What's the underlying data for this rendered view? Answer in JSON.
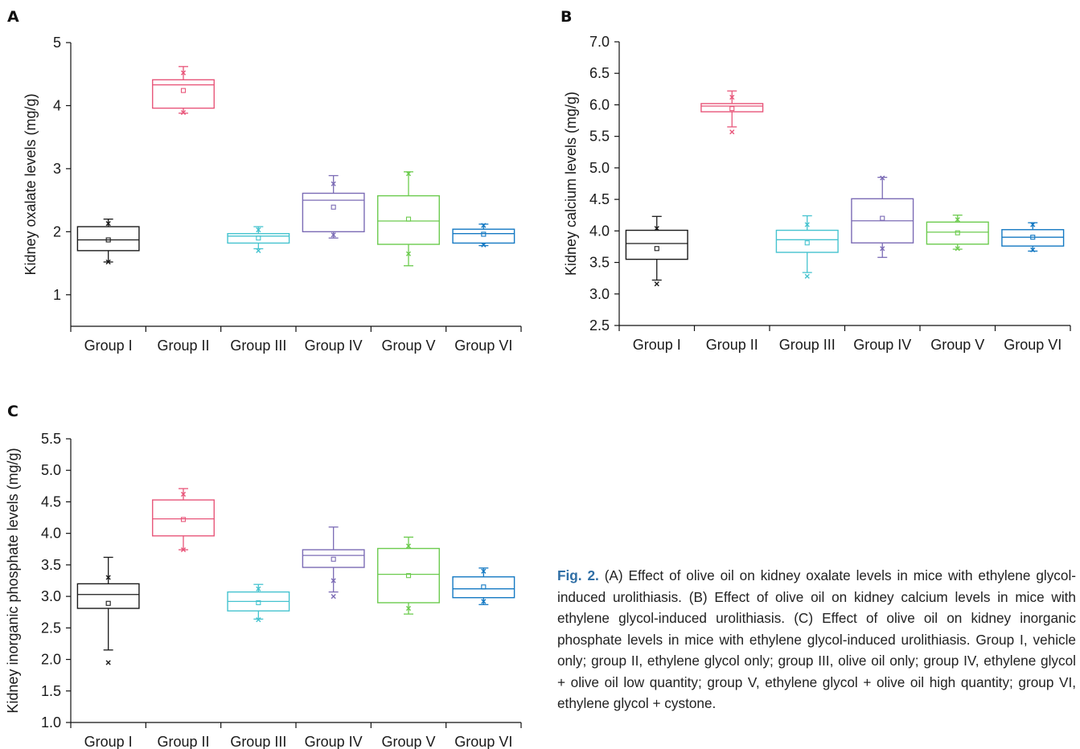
{
  "chart_data": [
    {
      "panel": "A",
      "type": "box",
      "ylabel": "Kidney oxalate levels (mg/g)",
      "ylim": [
        0.5,
        5
      ],
      "yticks": [
        "1",
        "2",
        "3",
        "4",
        "5"
      ],
      "ytick_values": [
        1,
        2,
        3,
        4,
        5
      ],
      "categories": [
        "Group I",
        "Group II",
        "Group III",
        "Group IV",
        "Group V",
        "Group VI"
      ],
      "colors": [
        "#1a1a1a",
        "#e8567a",
        "#45c3cf",
        "#7b6bb5",
        "#6ccb4e",
        "#1479c3"
      ],
      "boxes": [
        {
          "whisker_low": 1.52,
          "q1": 1.7,
          "median": 1.87,
          "q3": 2.08,
          "whisker_high": 2.2,
          "mean": 1.87,
          "min": 1.52,
          "max": 2.13
        },
        {
          "whisker_low": 3.88,
          "q1": 3.96,
          "median": 4.33,
          "q3": 4.41,
          "whisker_high": 4.62,
          "mean": 4.24,
          "min": 3.89,
          "max": 4.52
        },
        {
          "whisker_low": 1.73,
          "q1": 1.82,
          "median": 1.93,
          "q3": 1.97,
          "whisker_high": 2.08,
          "mean": 1.9,
          "min": 1.7,
          "max": 2.03
        },
        {
          "whisker_low": 1.9,
          "q1": 2.0,
          "median": 2.5,
          "q3": 2.61,
          "whisker_high": 2.89,
          "mean": 2.39,
          "min": 1.95,
          "max": 2.76
        },
        {
          "whisker_low": 1.46,
          "q1": 1.8,
          "median": 2.17,
          "q3": 2.57,
          "whisker_high": 2.95,
          "mean": 2.2,
          "min": 1.65,
          "max": 2.92
        },
        {
          "whisker_low": 1.78,
          "q1": 1.82,
          "median": 1.97,
          "q3": 2.04,
          "whisker_high": 2.12,
          "mean": 1.96,
          "min": 1.79,
          "max": 2.1
        }
      ]
    },
    {
      "panel": "B",
      "type": "box",
      "ylabel": "Kidney calcium levels (mg/g)",
      "ylim": [
        2.5,
        7.0
      ],
      "yticks": [
        "2.5",
        "3.0",
        "3.5",
        "4.0",
        "4.5",
        "5.0",
        "5.5",
        "6.0",
        "6.5",
        "7.0"
      ],
      "ytick_values": [
        2.5,
        3.0,
        3.5,
        4.0,
        4.5,
        5.0,
        5.5,
        6.0,
        6.5,
        7.0
      ],
      "categories": [
        "Group I",
        "Group II",
        "Group III",
        "Group IV",
        "Group V",
        "Group VI"
      ],
      "colors": [
        "#1a1a1a",
        "#e8567a",
        "#45c3cf",
        "#7b6bb5",
        "#6ccb4e",
        "#1479c3"
      ],
      "boxes": [
        {
          "whisker_low": 3.22,
          "q1": 3.55,
          "median": 3.8,
          "q3": 4.01,
          "whisker_high": 4.23,
          "mean": 3.72,
          "min": 3.16,
          "max": 4.04
        },
        {
          "whisker_low": 5.65,
          "q1": 5.89,
          "median": 5.98,
          "q3": 6.02,
          "whisker_high": 6.22,
          "mean": 5.94,
          "min": 5.57,
          "max": 6.12
        },
        {
          "whisker_low": 3.34,
          "q1": 3.66,
          "median": 3.86,
          "q3": 4.01,
          "whisker_high": 4.24,
          "mean": 3.81,
          "min": 3.28,
          "max": 4.1
        },
        {
          "whisker_low": 3.58,
          "q1": 3.81,
          "median": 4.16,
          "q3": 4.51,
          "whisker_high": 4.85,
          "mean": 4.2,
          "min": 3.72,
          "max": 4.84
        },
        {
          "whisker_low": 3.71,
          "q1": 3.79,
          "median": 3.98,
          "q3": 4.14,
          "whisker_high": 4.25,
          "mean": 3.97,
          "min": 3.72,
          "max": 4.18
        },
        {
          "whisker_low": 3.68,
          "q1": 3.76,
          "median": 3.9,
          "q3": 4.02,
          "whisker_high": 4.13,
          "mean": 3.9,
          "min": 3.7,
          "max": 4.1
        }
      ]
    },
    {
      "panel": "C",
      "type": "box",
      "ylabel": "Kidney inorganic phosphate levels (mg/g)",
      "ylim": [
        1.0,
        5.5
      ],
      "yticks": [
        "1.0",
        "1.5",
        "2.0",
        "2.5",
        "3.0",
        "3.5",
        "4.0",
        "4.5",
        "5.0",
        "5.5"
      ],
      "ytick_values": [
        1.0,
        1.5,
        2.0,
        2.5,
        3.0,
        3.5,
        4.0,
        4.5,
        5.0,
        5.5
      ],
      "categories": [
        "Group I",
        "Group II",
        "Group III",
        "Group IV",
        "Group V",
        "Group VI"
      ],
      "colors": [
        "#1a1a1a",
        "#e8567a",
        "#45c3cf",
        "#7b6bb5",
        "#6ccb4e",
        "#1479c3"
      ],
      "boxes": [
        {
          "whisker_low": 2.15,
          "q1": 2.81,
          "median": 3.03,
          "q3": 3.2,
          "whisker_high": 3.62,
          "mean": 2.89,
          "min": 1.95,
          "max": 3.3
        },
        {
          "whisker_low": 3.74,
          "q1": 3.96,
          "median": 4.23,
          "q3": 4.53,
          "whisker_high": 4.71,
          "mean": 4.22,
          "min": 3.74,
          "max": 4.62
        },
        {
          "whisker_low": 2.64,
          "q1": 2.77,
          "median": 2.92,
          "q3": 3.07,
          "whisker_high": 3.19,
          "mean": 2.9,
          "min": 2.63,
          "max": 3.12
        },
        {
          "whisker_low": 3.07,
          "q1": 3.46,
          "median": 3.65,
          "q3": 3.74,
          "whisker_high": 4.1,
          "mean": 3.59,
          "min": 3.0,
          "max": 3.25
        },
        {
          "whisker_low": 2.72,
          "q1": 2.9,
          "median": 3.35,
          "q3": 3.76,
          "whisker_high": 3.94,
          "mean": 3.33,
          "min": 2.81,
          "max": 3.8
        },
        {
          "whisker_low": 2.87,
          "q1": 2.98,
          "median": 3.12,
          "q3": 3.31,
          "whisker_high": 3.45,
          "mean": 3.15,
          "min": 2.92,
          "max": 3.4
        }
      ]
    }
  ],
  "caption": {
    "fig_label": "Fig. 2.",
    "text": " (A) Effect of olive oil on kidney oxalate levels in mice with ethylene glycol-induced urolithiasis. (B) Effect of olive oil on kidney calcium levels in mice with ethylene glycol-induced urolithiasis. (C) Effect of olive oil on kidney inorganic phosphate levels in mice with ethylene glycol-induced urolithiasis. Group I, vehicle only; group II, ethylene glycol only; group III, olive oil only; group IV, ethylene glycol + olive oil low quantity; group V, ethylene glycol + olive oil high quantity; group VI, ethylene glycol + cystone."
  }
}
